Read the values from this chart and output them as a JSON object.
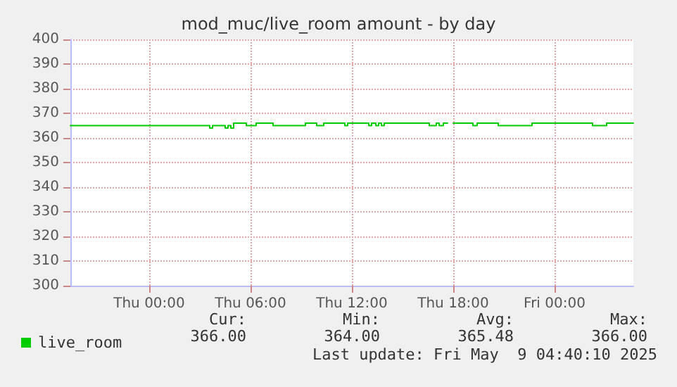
{
  "chart_data": {
    "type": "step",
    "title": "mod_muc/live_room amount - by day",
    "x": [
      "2025-05-07T19:20",
      "2025-05-08T03:30",
      "2025-05-08T03:35",
      "2025-05-08T03:45",
      "2025-05-08T04:30",
      "2025-05-08T04:40",
      "2025-05-08T04:50",
      "2025-05-08T05:00",
      "2025-05-08T05:45",
      "2025-05-08T06:20",
      "2025-05-08T07:20",
      "2025-05-08T09:15",
      "2025-05-08T09:55",
      "2025-05-08T10:20",
      "2025-05-08T11:35",
      "2025-05-08T11:45",
      "2025-05-08T13:00",
      "2025-05-08T13:10",
      "2025-05-08T13:25",
      "2025-05-08T13:35",
      "2025-05-08T13:45",
      "2025-05-08T13:55",
      "2025-05-08T16:35",
      "2025-05-08T17:00",
      "2025-05-08T17:10",
      "2025-05-08T17:25",
      "2025-05-08T17:40",
      "2025-05-08T18:00",
      "2025-05-08T18:20",
      "2025-05-08T18:30",
      "2025-05-08T19:10",
      "2025-05-08T19:25",
      "2025-05-08T20:40",
      "2025-05-08T22:40",
      "2025-05-09T02:15",
      "2025-05-09T03:05",
      "2025-05-09T04:40"
    ],
    "series": [
      {
        "name": "live_room",
        "color": "#00cc00",
        "values": [
          365,
          365,
          364,
          365,
          364,
          365,
          364,
          366,
          365,
          366,
          365,
          366,
          365,
          366,
          365,
          366,
          365,
          366,
          365,
          366,
          365,
          366,
          365,
          366,
          365,
          366,
          null,
          366,
          366,
          366,
          365,
          366,
          365,
          366,
          365,
          366,
          366
        ]
      }
    ],
    "xlim": [
      "2025-05-07T19:20",
      "2025-05-09T04:40"
    ],
    "xticks": [
      {
        "value": "2025-05-08T00:00",
        "label": "Thu 00:00"
      },
      {
        "value": "2025-05-08T06:00",
        "label": "Thu 06:00"
      },
      {
        "value": "2025-05-08T12:00",
        "label": "Thu 12:00"
      },
      {
        "value": "2025-05-08T18:00",
        "label": "Thu 18:00"
      },
      {
        "value": "2025-05-09T00:00",
        "label": "Fri 00:00"
      }
    ],
    "ylim": [
      300,
      400
    ],
    "yticks": [
      300,
      310,
      320,
      330,
      340,
      350,
      360,
      370,
      380,
      390,
      400
    ],
    "grid": true,
    "legend": "bottom left",
    "marker": "none",
    "line_style": "solid",
    "annotations": [
      "Cur:",
      "Min:",
      "Avg:",
      "Max:",
      "366.00",
      "364.00",
      "365.48",
      "366.00",
      "Last update: Fri May  9 04:40:10 2025"
    ]
  }
}
